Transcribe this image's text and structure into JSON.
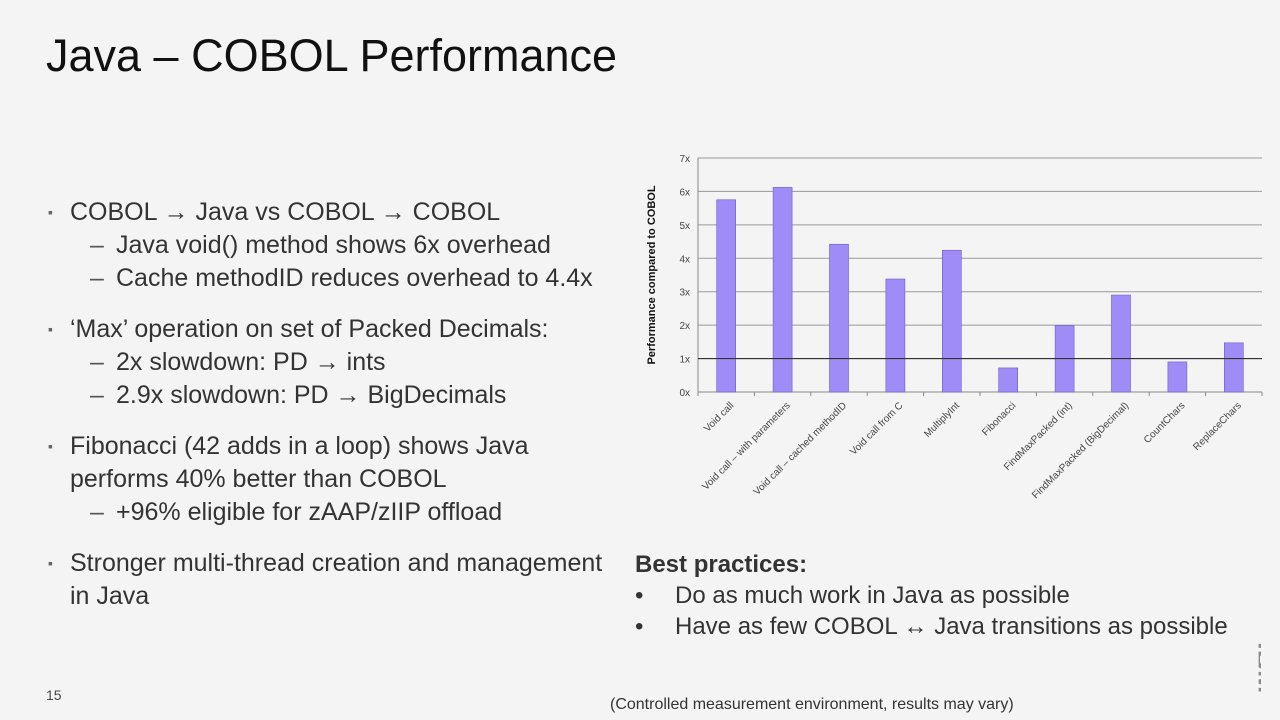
{
  "title": "Java – COBOL Performance",
  "bullets": [
    {
      "text": "COBOL → Java vs COBOL → COBOL",
      "subs": [
        "Java void() method shows 6x overhead",
        "Cache methodID reduces overhead to 4.4x"
      ]
    },
    {
      "text": "‘Max’ operation on set of Packed Decimals:",
      "subs": [
        "2x slowdown: PD → ints",
        "2.9x slowdown: PD → BigDecimals"
      ]
    },
    {
      "text": "Fibonacci (42 adds in a loop) shows Java performs 40% better than COBOL",
      "subs": [
        "+96% eligible for zAAP/zIIP offload"
      ]
    },
    {
      "text": "Stronger multi-thread creation and management in Java",
      "subs": []
    }
  ],
  "best_practices": {
    "heading": "Best practices:",
    "items": [
      "Do as much work in Java as possible",
      "Have as few COBOL ↔ Java transitions as possible"
    ]
  },
  "page_number": "15",
  "footnote": "(Controlled measurement environment, results may vary)",
  "logo": "IBM",
  "chart_data": {
    "type": "bar",
    "categories": [
      "Void call",
      "Void call – with parameters",
      "Void call – cached methodID",
      "Void call from C",
      "MultiplyInt",
      "Fibonacci",
      "FindMaxPacked (int)",
      "FindMaxPacked (BigDecimal)",
      "CountChars",
      "ReplaceChars"
    ],
    "values": [
      5.75,
      6.12,
      4.42,
      3.38,
      4.24,
      0.72,
      1.98,
      2.9,
      0.9,
      1.47
    ],
    "ylabel": "Performance compared to COBOL",
    "xlabel": "",
    "ylim": [
      0,
      7
    ],
    "yticks": [
      "0x",
      "1x",
      "2x",
      "3x",
      "4x",
      "5x",
      "6x",
      "7x"
    ],
    "reference_line": 1,
    "grid": true,
    "bar_color": "#a08cf6"
  }
}
